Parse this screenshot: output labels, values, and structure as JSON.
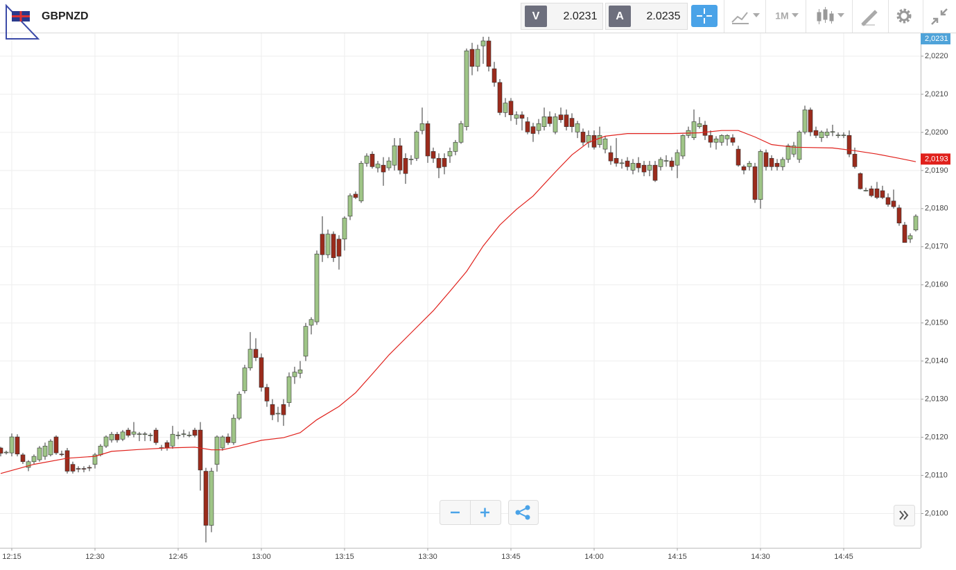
{
  "header": {
    "symbol": "GBPNZD",
    "bid_label": "V",
    "bid": "2.0231",
    "ask_label": "A",
    "ask": "2.0235",
    "timeframe": "1M"
  },
  "chart_data": {
    "type": "candlestick",
    "up_color": "#9fc587",
    "down_color": "#9b2b1c",
    "wick_color": "#333333",
    "grid": true,
    "x": [
      "12:13",
      "12:14",
      "12:15",
      "12:16",
      "12:17",
      "12:18",
      "12:19",
      "12:20",
      "12:21",
      "12:22",
      "12:23",
      "12:24",
      "12:25",
      "12:26",
      "12:27",
      "12:28",
      "12:29",
      "12:30",
      "12:31",
      "12:32",
      "12:33",
      "12:34",
      "12:35",
      "12:36",
      "12:37",
      "12:38",
      "12:39",
      "12:40",
      "12:41",
      "12:42",
      "12:43",
      "12:44",
      "12:45",
      "12:46",
      "12:47",
      "12:48",
      "12:49",
      "12:50",
      "12:51",
      "12:52",
      "12:53",
      "12:54",
      "12:55",
      "12:56",
      "12:57",
      "12:58",
      "12:59",
      "13:00",
      "13:01",
      "13:02",
      "13:03",
      "13:04",
      "13:05",
      "13:06",
      "13:07",
      "13:08",
      "13:09",
      "13:10",
      "13:11",
      "13:12",
      "13:13",
      "13:14",
      "13:15",
      "13:16",
      "13:17",
      "13:18",
      "13:19",
      "13:20",
      "13:21",
      "13:22",
      "13:23",
      "13:24",
      "13:25",
      "13:26",
      "13:27",
      "13:28",
      "13:29",
      "13:30",
      "13:31",
      "13:32",
      "13:33",
      "13:34",
      "13:35",
      "13:36",
      "13:37",
      "13:38",
      "13:39",
      "13:40",
      "13:41",
      "13:42",
      "13:43",
      "13:44",
      "13:45",
      "13:46",
      "13:47",
      "13:48",
      "13:49",
      "13:50",
      "13:51",
      "13:52",
      "13:53",
      "13:54",
      "13:55",
      "13:56",
      "13:57",
      "13:58",
      "13:59",
      "14:00",
      "14:01",
      "14:02",
      "14:03",
      "14:04",
      "14:05",
      "14:06",
      "14:07",
      "14:08",
      "14:09",
      "14:10",
      "14:11",
      "14:12",
      "14:13",
      "14:14",
      "14:15",
      "14:16",
      "14:17",
      "14:18",
      "14:19",
      "14:20",
      "14:21",
      "14:22",
      "14:23",
      "14:24",
      "14:25",
      "14:26",
      "14:27",
      "14:28",
      "14:29",
      "14:30",
      "14:31",
      "14:32",
      "14:33",
      "14:34",
      "14:35",
      "14:36",
      "14:37",
      "14:38",
      "14:39",
      "14:40",
      "14:41",
      "14:42",
      "14:43",
      "14:44",
      "14:45",
      "14:46",
      "14:47",
      "14:48",
      "14:49",
      "14:50",
      "14:51",
      "14:52",
      "14:53",
      "14:54",
      "14:55",
      "14:56",
      "14:57",
      "14:58"
    ],
    "open": [
      2.01172,
      2.0116,
      2.01159,
      2.01201,
      2.01154,
      2.01121,
      2.01136,
      2.01141,
      2.0115,
      2.01154,
      2.01201,
      2.01156,
      2.01165,
      2.01129,
      2.01118,
      2.01118,
      2.01121,
      2.01129,
      2.01154,
      2.01177,
      2.01193,
      2.01208,
      2.01195,
      2.01219,
      2.01208,
      2.01208,
      2.01208,
      2.01205,
      2.01219,
      2.01172,
      2.01186,
      2.01177,
      2.01205,
      2.01208,
      2.01205,
      2.01219,
      2.01219,
      2.01111,
      2.00969,
      2.01129,
      2.01172,
      2.01201,
      2.01186,
      2.0125,
      2.01322,
      2.01382,
      2.01431,
      2.01409,
      2.01331,
      2.01286,
      2.01262,
      2.01286,
      2.01291,
      2.01359,
      2.01368,
      2.01413,
      2.01494,
      2.01503,
      2.01733,
      2.01679,
      2.01733,
      2.0172,
      2.0172,
      2.0178,
      2.01838,
      2.0182,
      2.01919,
      2.01943,
      2.01907,
      2.01914,
      2.01907,
      2.01914,
      2.01965,
      2.01932,
      2.01929,
      2.01932,
      2.02005,
      2.02023,
      2.0195,
      2.01932,
      2.01932,
      2.01938,
      2.0195,
      2.01974,
      2.02015,
      2.02218,
      2.02173,
      2.02227,
      2.0224,
      2.02167,
      2.02131,
      2.02052,
      2.02082,
      2.02037,
      2.02046,
      2.02028,
      2.02015,
      2.02005,
      2.02015,
      2.02041,
      2.02001,
      2.02046,
      2.02046,
      2.02037,
      2.02001,
      2.02001,
      2.01974,
      2.01992,
      2.01968,
      2.01956,
      2.01947,
      2.01932,
      2.01919,
      2.01925,
      2.01901,
      2.01919,
      2.01914,
      2.01901,
      2.01914,
      2.0191,
      2.01925,
      2.01925,
      2.01914,
      2.01938,
      2.01992,
      2.01986,
      2.02015,
      2.02019,
      2.01992,
      2.01974,
      2.01974,
      2.01983,
      2.01986,
      2.01956,
      2.0191,
      2.0191,
      2.0191,
      2.01824,
      2.01947,
      2.01932,
      2.01919,
      2.0191,
      2.01929,
      2.01943,
      2.01929,
      2.02001,
      2.02059,
      2.02005,
      2.01986,
      2.01992,
      2.02001,
      2.01992,
      2.01992,
      2.01992,
      2.01943,
      2.01892,
      2.01847,
      2.01852,
      2.01852,
      2.01847,
      2.01829,
      2.0182,
      2.01802,
      2.01757,
      2.0172,
      2.01744
    ],
    "high": [
      2.01175,
      2.01165,
      2.0121,
      2.01208,
      2.01159,
      2.0114,
      2.01155,
      2.01177,
      2.01186,
      2.01195,
      2.01205,
      2.01165,
      2.01172,
      2.01136,
      2.01124,
      2.01124,
      2.01127,
      2.01159,
      2.01182,
      2.01205,
      2.01214,
      2.01214,
      2.01219,
      2.01225,
      2.0124,
      2.01214,
      2.01214,
      2.01211,
      2.01225,
      2.0118,
      2.01192,
      2.0123,
      2.01215,
      2.0122,
      2.01215,
      2.01225,
      2.0124,
      2.0112,
      2.0112,
      2.01205,
      2.01205,
      2.0121,
      2.0126,
      2.0132,
      2.0139,
      2.01476,
      2.0146,
      2.0142,
      2.0134,
      2.013,
      2.0128,
      2.013,
      2.0137,
      2.01385,
      2.014,
      2.015,
      2.01515,
      2.0169,
      2.0178,
      2.01745,
      2.0174,
      2.0173,
      2.0178,
      2.0184,
      2.01845,
      2.01925,
      2.01945,
      2.0195,
      2.01925,
      2.01935,
      2.01935,
      2.01985,
      2.01985,
      2.01945,
      2.0194,
      2.02005,
      2.02065,
      2.0203,
      2.0196,
      2.01945,
      2.01945,
      2.0196,
      2.0198,
      2.0203,
      2.0222,
      2.02235,
      2.0223,
      2.02251,
      2.02251,
      2.02185,
      2.0214,
      2.0209,
      2.0209,
      2.02055,
      2.02055,
      2.0204,
      2.02025,
      2.02035,
      2.02065,
      2.02055,
      2.0205,
      2.02065,
      2.0206,
      2.0205,
      2.0203,
      2.0201,
      2.02005,
      2.02005,
      2.02015,
      2.0199,
      2.01965,
      2.01985,
      2.0193,
      2.01935,
      2.0193,
      2.01935,
      2.01925,
      2.01925,
      2.01925,
      2.01935,
      2.0194,
      2.01935,
      2.01955,
      2.01995,
      2.02015,
      2.0206,
      2.0204,
      2.0203,
      2.02005,
      2.0199,
      2.01995,
      2.01995,
      2.01995,
      2.01965,
      2.01915,
      2.01925,
      2.0192,
      2.01955,
      2.01955,
      2.0194,
      2.0193,
      2.01935,
      2.0197,
      2.01975,
      2.02005,
      2.0207,
      2.02065,
      2.02015,
      2.02005,
      2.0201,
      2.0202,
      2.02,
      2.02,
      2.02005,
      2.0196,
      2.01895,
      2.01855,
      2.0186,
      2.0187,
      2.0186,
      2.0184,
      2.0185,
      2.0181,
      2.01765,
      2.01735,
      2.01785
    ],
    "low": [
      2.0115,
      2.01155,
      2.0115,
      2.0115,
      2.0113,
      2.01111,
      2.0113,
      2.01136,
      2.01141,
      2.0115,
      2.01154,
      2.0115,
      2.01105,
      2.01105,
      2.01108,
      2.01108,
      2.01111,
      2.01118,
      2.0115,
      2.01172,
      2.01186,
      2.01186,
      2.0119,
      2.012,
      2.012,
      2.0119,
      2.0119,
      2.0119,
      2.0118,
      2.01165,
      2.01165,
      2.0117,
      2.01195,
      2.012,
      2.012,
      2.012,
      2.0106,
      2.00924,
      2.00951,
      2.0111,
      2.01165,
      2.0118,
      2.0118,
      2.01245,
      2.01315,
      2.01375,
      2.014,
      2.0132,
      2.0128,
      2.01245,
      2.0124,
      2.0123,
      2.0128,
      2.0134,
      2.01355,
      2.014,
      2.0147,
      2.01495,
      2.0166,
      2.0167,
      2.0166,
      2.0164,
      2.0169,
      2.0177,
      2.01825,
      2.01815,
      2.0191,
      2.01905,
      2.01895,
      2.0186,
      2.019,
      2.019,
      2.0189,
      2.01865,
      2.01915,
      2.01925,
      2.01995,
      2.0192,
      2.0192,
      2.0188,
      2.0189,
      2.0192,
      2.0194,
      2.0197,
      2.02005,
      2.0215,
      2.0216,
      2.0218,
      2.0216,
      2.0212,
      2.02045,
      2.0204,
      2.0203,
      2.0202,
      2.02005,
      2.01995,
      2.01975,
      2.01995,
      2.02005,
      2.02015,
      2.01995,
      2.02025,
      2.02005,
      2.02,
      2.01985,
      2.01965,
      2.0196,
      2.01955,
      2.0196,
      2.01945,
      2.01915,
      2.0191,
      2.01905,
      2.019,
      2.0189,
      2.01895,
      2.01885,
      2.01885,
      2.0187,
      2.019,
      2.0191,
      2.019,
      2.0188,
      2.0193,
      2.01985,
      2.0198,
      2.0201,
      2.0198,
      2.0196,
      2.01955,
      2.01965,
      2.01965,
      2.01965,
      2.0191,
      2.0189,
      2.019,
      2.01815,
      2.018,
      2.019,
      2.019,
      2.019,
      2.019,
      2.0192,
      2.01935,
      2.0192,
      2.01995,
      2.0199,
      2.01985,
      2.01975,
      2.01985,
      2.0199,
      2.01985,
      2.01985,
      2.01935,
      2.01905,
      2.0185,
      2.01845,
      2.0183,
      2.01825,
      2.01825,
      2.01805,
      2.018,
      2.01755,
      2.01711,
      2.0171,
      2.0174
    ],
    "close": [
      2.01158,
      2.01161,
      2.01201,
      2.01156,
      2.01136,
      2.01136,
      2.0115,
      2.01172,
      2.01177,
      2.0119,
      2.01159,
      2.01155,
      2.01111,
      2.01111,
      2.01117,
      2.01117,
      2.0112,
      2.01154,
      2.01177,
      2.01201,
      2.01208,
      2.01193,
      2.01214,
      2.01205,
      2.01214,
      2.01209,
      2.01209,
      2.01206,
      2.01186,
      2.01173,
      2.01172,
      2.01208,
      2.01206,
      2.01209,
      2.01206,
      2.01205,
      2.01114,
      2.00969,
      2.01111,
      2.01201,
      2.01201,
      2.01186,
      2.0125,
      2.01313,
      2.01382,
      2.01431,
      2.01409,
      2.01331,
      2.01295,
      2.01259,
      2.01263,
      2.01259,
      2.01359,
      2.01371,
      2.01377,
      2.01491,
      2.01509,
      2.01681,
      2.01679,
      2.01733,
      2.01671,
      2.01675,
      2.01775,
      2.01834,
      2.01829,
      2.01919,
      2.01938,
      2.0191,
      2.01917,
      2.01896,
      2.01925,
      2.01965,
      2.01901,
      2.01892,
      2.0193,
      2.02001,
      2.02023,
      2.01938,
      2.01932,
      2.01907,
      2.0191,
      2.0195,
      2.01974,
      2.02023,
      2.02214,
      2.02173,
      2.02218,
      2.0224,
      2.02173,
      2.02131,
      2.02052,
      2.02077,
      2.02046,
      2.02046,
      2.02037,
      2.02001,
      2.01997,
      2.02023,
      2.02041,
      2.02023,
      2.02041,
      2.02033,
      2.02015,
      2.02015,
      2.02023,
      2.01974,
      2.01992,
      2.01961,
      2.01992,
      2.01983,
      2.01925,
      2.01919,
      2.0192,
      2.0191,
      2.01919,
      2.01907,
      2.01896,
      2.01914,
      2.01874,
      2.01929,
      2.01926,
      2.0191,
      2.01947,
      2.01992,
      2.02005,
      2.02028,
      2.02023,
      2.01992,
      2.01974,
      2.01983,
      2.01992,
      2.01992,
      2.01974,
      2.01914,
      2.01901,
      2.01919,
      2.01824,
      2.0195,
      2.0191,
      2.0191,
      2.0191,
      2.01929,
      2.01965,
      2.01965,
      2.02001,
      2.02059,
      2.02001,
      2.01992,
      2.02001,
      2.02001,
      2.02002,
      2.01993,
      2.01993,
      2.01943,
      2.0191,
      2.01852,
      2.01848,
      2.01834,
      2.01829,
      2.01829,
      2.01811,
      2.01805,
      2.01762,
      2.01711,
      2.01729,
      2.0178
    ],
    "ma": {
      "color": "#e0201b",
      "x": [
        "12:13",
        "12:19",
        "12:25",
        "12:30",
        "12:33",
        "12:38",
        "12:43",
        "12:48",
        "12:51",
        "12:53",
        "12:56",
        "13:00",
        "13:04",
        "13:07",
        "13:10",
        "13:14",
        "13:17",
        "13:20",
        "13:23",
        "13:27",
        "13:31",
        "13:34",
        "13:37",
        "13:40",
        "13:43",
        "13:46",
        "13:49",
        "13:53",
        "13:56",
        "13:59",
        "14:02",
        "14:06",
        "14:14",
        "14:19",
        "14:23",
        "14:26",
        "14:29",
        "14:32",
        "14:36",
        "14:43",
        "14:47",
        "14:51",
        "14:55",
        "14:58"
      ],
      "values": [
        2.01105,
        2.01129,
        2.01145,
        2.0115,
        2.01163,
        2.01168,
        2.01172,
        2.01174,
        2.01167,
        2.01167,
        2.01177,
        2.01192,
        2.01199,
        2.01212,
        2.01246,
        2.01281,
        2.01317,
        2.01366,
        2.01416,
        2.01474,
        2.01532,
        2.01583,
        2.01635,
        2.01702,
        2.01757,
        2.01798,
        2.01833,
        2.01896,
        2.01941,
        2.01974,
        2.0199,
        2.01997,
        2.01997,
        2.01999,
        2.02005,
        2.02005,
        2.01988,
        2.01968,
        2.01961,
        2.01959,
        2.01952,
        2.01943,
        2.01932,
        2.01923
      ],
      "last": {
        "value": 2.0193,
        "label": "2,0193"
      }
    },
    "last_price": {
      "value": 2.0231,
      "label": "2,0231",
      "color": "#4fa3d9"
    },
    "ylim": [
      2.0091,
      2.0226
    ],
    "yticks": [
      {
        "value": 2.01,
        "label": "2,0100"
      },
      {
        "value": 2.011,
        "label": "2,0110"
      },
      {
        "value": 2.012,
        "label": "2,0120"
      },
      {
        "value": 2.013,
        "label": "2,0130"
      },
      {
        "value": 2.014,
        "label": "2,0140"
      },
      {
        "value": 2.015,
        "label": "2,0150"
      },
      {
        "value": 2.016,
        "label": "2,0160"
      },
      {
        "value": 2.017,
        "label": "2,0170"
      },
      {
        "value": 2.018,
        "label": "2,0180"
      },
      {
        "value": 2.019,
        "label": "2,0190"
      },
      {
        "value": 2.02,
        "label": "2,0200"
      },
      {
        "value": 2.021,
        "label": "2,0210"
      },
      {
        "value": 2.022,
        "label": "2,0220"
      }
    ],
    "xticks": [
      "12:15",
      "12:30",
      "12:45",
      "13:00",
      "13:15",
      "13:30",
      "13:45",
      "14:00",
      "14:15",
      "14:30",
      "14:45"
    ]
  }
}
